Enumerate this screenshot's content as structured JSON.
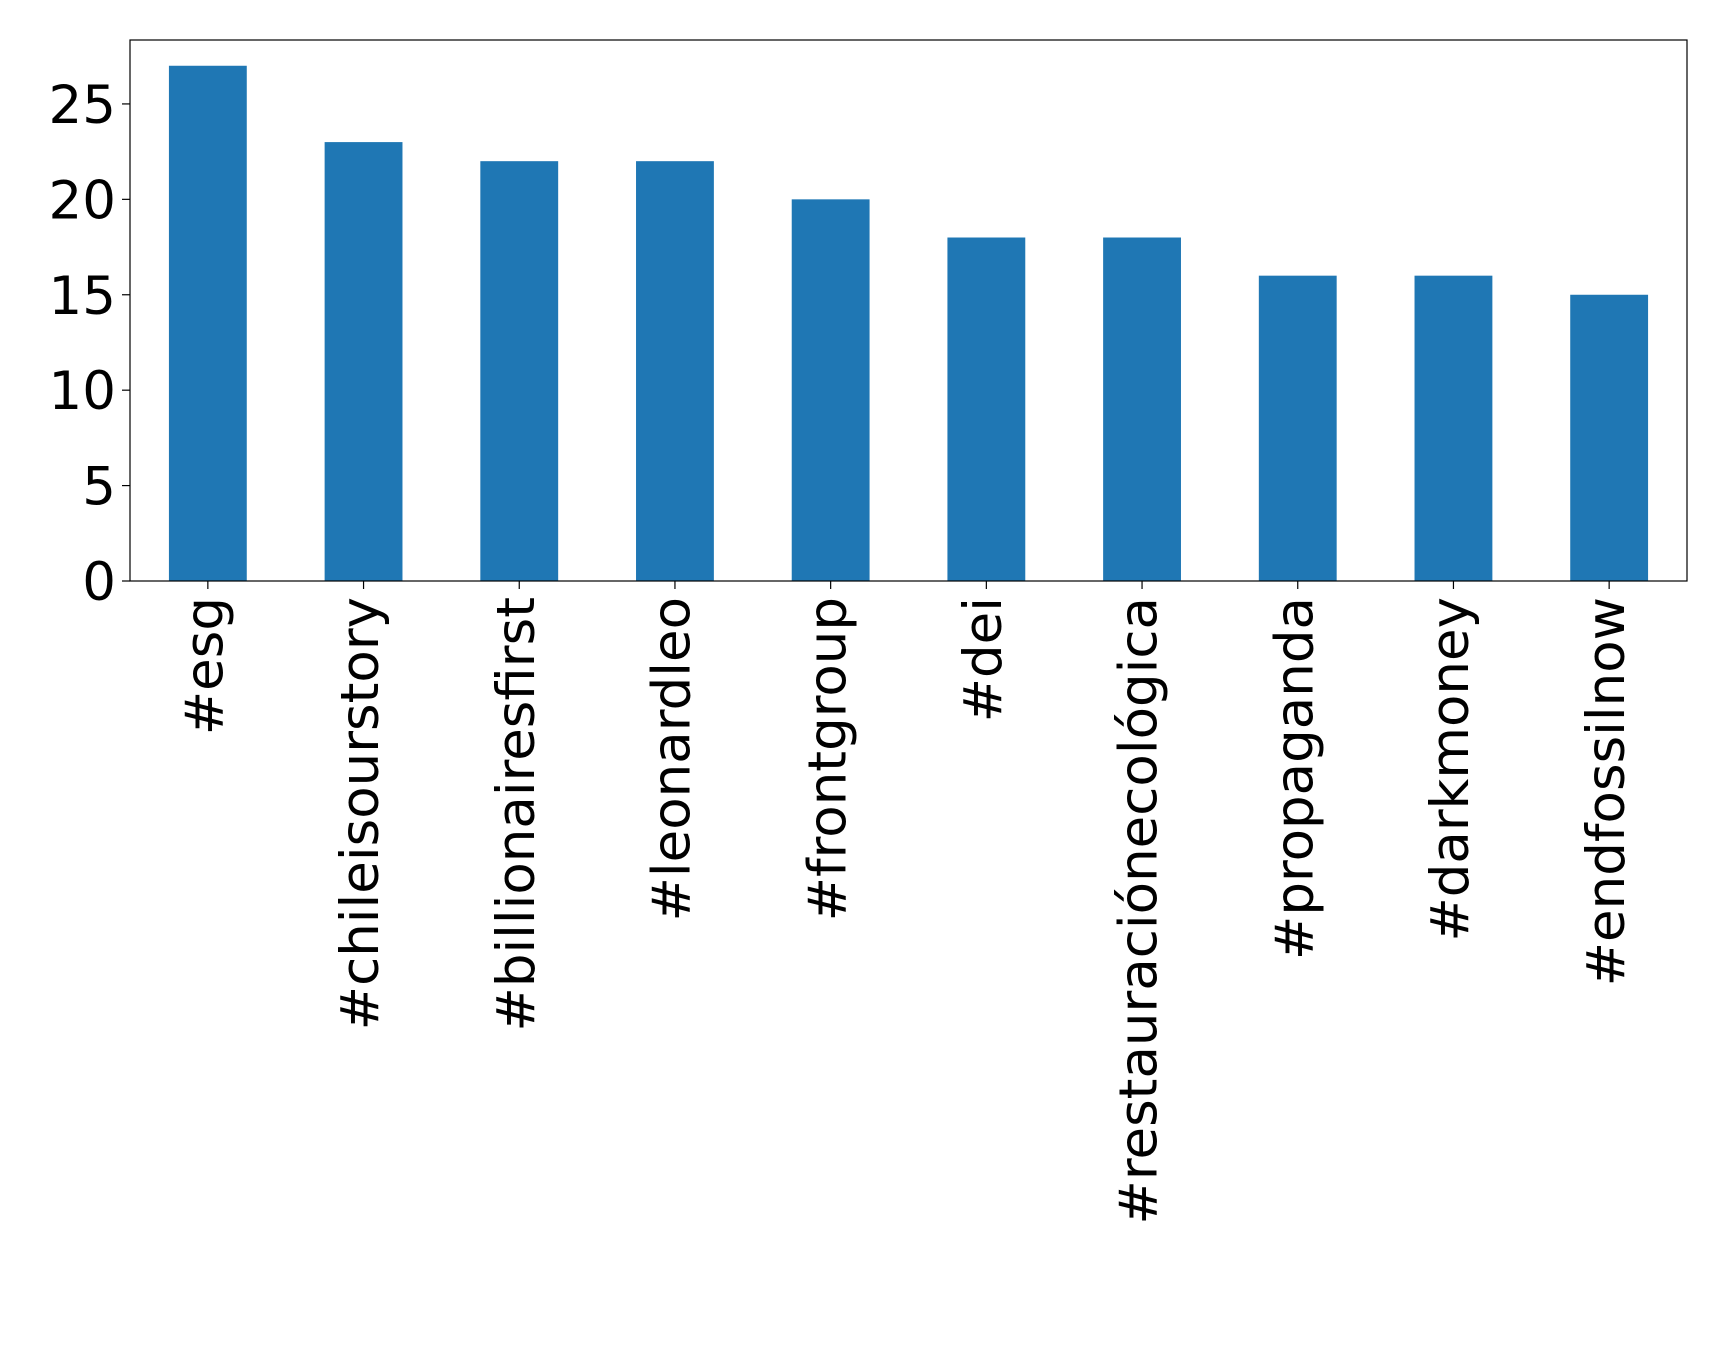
{
  "chart_data": {
    "type": "bar",
    "categories": [
      "#esg",
      "#chileisourstory",
      "#billionairesfirst",
      "#leonardleo",
      "#frontgroup",
      "#dei",
      "#restauraciónecológica",
      "#propaganda",
      "#darkmoney",
      "#endfossilnow"
    ],
    "values": [
      27,
      23,
      22,
      22,
      20,
      18,
      18,
      16,
      16,
      15
    ],
    "color": "#1f77b4",
    "ylim": [
      0,
      28.35
    ],
    "yticks": [
      0,
      5,
      10,
      15,
      20,
      25
    ],
    "grid": false
  }
}
